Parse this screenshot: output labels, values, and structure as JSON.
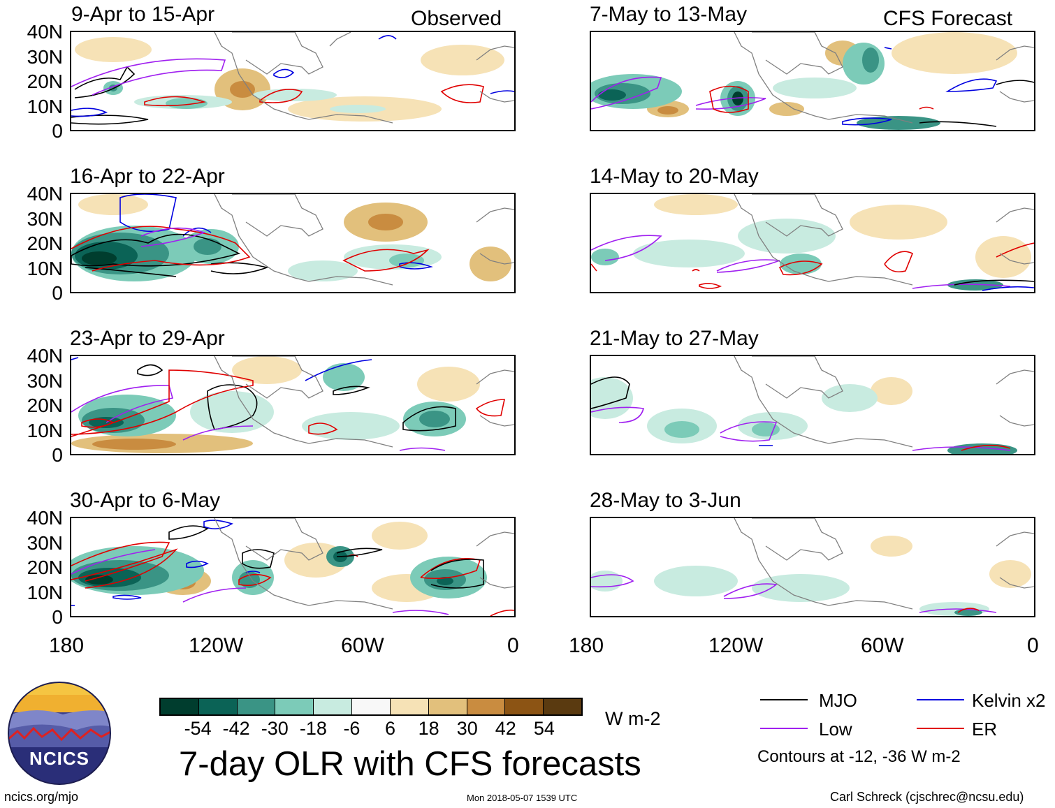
{
  "observed_label": "Observed",
  "forecast_label": "CFS Forecast",
  "panels": [
    {
      "title": "9-Apr to 15-Apr"
    },
    {
      "title": "16-Apr to 22-Apr"
    },
    {
      "title": "23-Apr to 29-Apr"
    },
    {
      "title": "30-Apr to 6-May"
    },
    {
      "title": "7-May to 13-May"
    },
    {
      "title": "14-May to 20-May"
    },
    {
      "title": "21-May to 27-May"
    },
    {
      "title": "28-May to 3-Jun"
    }
  ],
  "lat_labels": [
    "40N",
    "30N",
    "20N",
    "10N",
    "0"
  ],
  "lon_labels": [
    "180",
    "120W",
    "60W",
    "0"
  ],
  "colorbar": {
    "colors": [
      "#003d2e",
      "#0b6356",
      "#3a9485",
      "#7ccbb8",
      "#c8ebe0",
      "#f8f8f8",
      "#f6e2b6",
      "#e2c07c",
      "#c98c40",
      "#8c5414",
      "#5a3a10"
    ],
    "labels": [
      "-54",
      "-42",
      "-30",
      "-18",
      "-6",
      "6",
      "18",
      "30",
      "42",
      "54"
    ],
    "units": "W m-2"
  },
  "legend": {
    "items": [
      {
        "label": "MJO",
        "color": "#000000"
      },
      {
        "label": "Kelvin x2",
        "color": "#0000e0"
      },
      {
        "label": "Low",
        "color": "#a020f0"
      },
      {
        "label": "ER",
        "color": "#e00000"
      }
    ],
    "note": "Contours at -12, -36 W m-2"
  },
  "main_title": "7-day OLR with CFS forecasts",
  "logo_text": "NCICS",
  "url": "ncics.org/mjo",
  "timestamp": "Mon 2018-05-07 1539 UTC",
  "credit": "Carl Schreck (cjschrec@ncsu.edu)"
}
